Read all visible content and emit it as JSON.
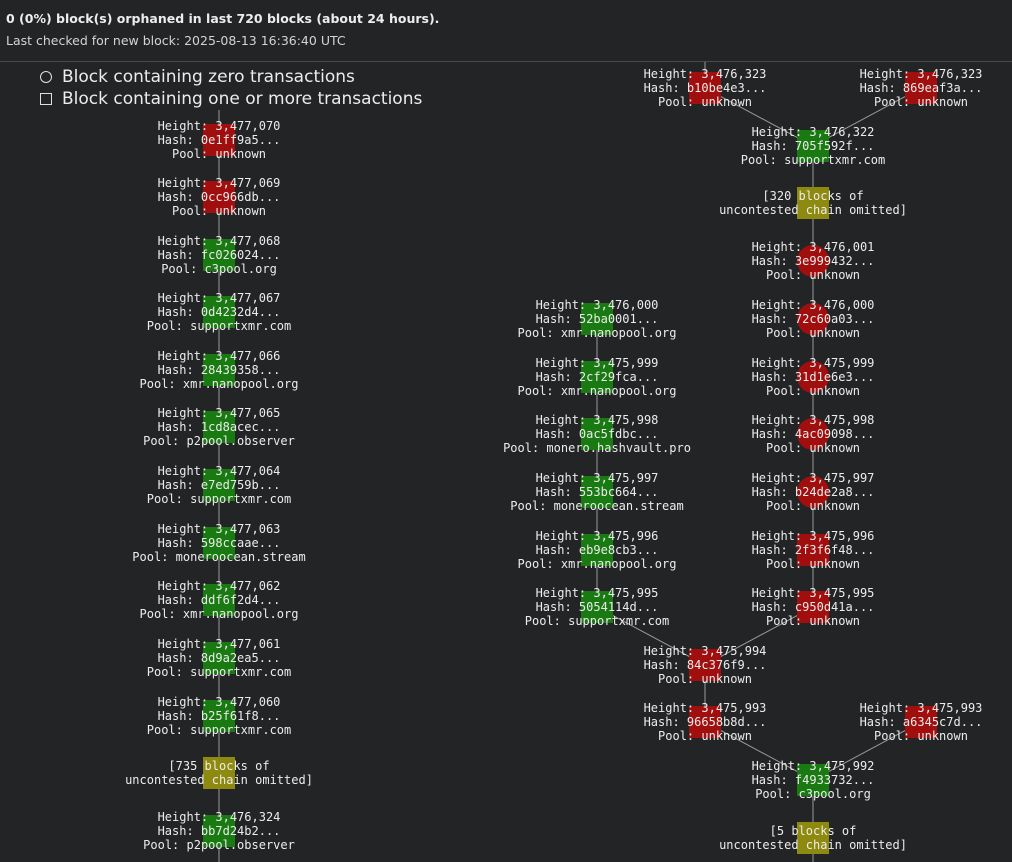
{
  "header": {
    "orphan_summary": "0 (0%) block(s) orphaned in last 720 blocks (about 24 hours).",
    "last_checked": "Last checked for new block: 2025-08-13 16:36:40 UTC"
  },
  "legend": {
    "zero_tx": "Block containing zero transactions",
    "with_tx": "Block containing one or more transactions"
  },
  "colors": {
    "background": "#232426",
    "orphan_red": "#a10e0e",
    "main_green": "#1a7a12",
    "omitted_olive": "#8e8a0f",
    "edge": "#9a9a9a"
  },
  "nodes": [
    {
      "id": "a3477070",
      "shape": "square",
      "color": "red",
      "lines": [
        "Height: 3,477,070",
        "Hash: 0e1ff9a5...",
        "Pool: unknown"
      ]
    },
    {
      "id": "a3477069",
      "shape": "square",
      "color": "red",
      "lines": [
        "Height: 3,477,069",
        "Hash: 0cc966db...",
        "Pool: unknown"
      ]
    },
    {
      "id": "a3477068",
      "shape": "square",
      "color": "green",
      "lines": [
        "Height: 3,477,068",
        "Hash: fc026024...",
        "Pool: c3pool.org"
      ]
    },
    {
      "id": "a3477067",
      "shape": "square",
      "color": "green",
      "lines": [
        "Height: 3,477,067",
        "Hash: 0d4232d4...",
        "Pool: supportxmr.com"
      ]
    },
    {
      "id": "a3477066",
      "shape": "square",
      "color": "green",
      "lines": [
        "Height: 3,477,066",
        "Hash: 28439358...",
        "Pool: xmr.nanopool.org"
      ]
    },
    {
      "id": "a3477065",
      "shape": "square",
      "color": "green",
      "lines": [
        "Height: 3,477,065",
        "Hash: 1cd8acec...",
        "Pool: p2pool.observer"
      ]
    },
    {
      "id": "a3477064",
      "shape": "square",
      "color": "green",
      "lines": [
        "Height: 3,477,064",
        "Hash: e7ed759b...",
        "Pool: supportxmr.com"
      ]
    },
    {
      "id": "a3477063",
      "shape": "square",
      "color": "green",
      "lines": [
        "Height: 3,477,063",
        "Hash: 598ccaae...",
        "Pool: moneroocean.stream"
      ]
    },
    {
      "id": "a3477062",
      "shape": "square",
      "color": "green",
      "lines": [
        "Height: 3,477,062",
        "Hash: ddf6f2d4...",
        "Pool: xmr.nanopool.org"
      ]
    },
    {
      "id": "a3477061",
      "shape": "square",
      "color": "green",
      "lines": [
        "Height: 3,477,061",
        "Hash: 8d9a2ea5...",
        "Pool: supportxmr.com"
      ]
    },
    {
      "id": "a3477060",
      "shape": "square",
      "color": "green",
      "lines": [
        "Height: 3,477,060",
        "Hash: b25f61f8...",
        "Pool: supportxmr.com"
      ]
    },
    {
      "id": "omit735",
      "shape": "square",
      "color": "olive",
      "lines": [
        "[735 blocks of",
        "uncontested chain omitted]"
      ]
    },
    {
      "id": "a3476324",
      "shape": "square",
      "color": "green",
      "lines": [
        "Height: 3,476,324",
        "Hash: bb7d24b2...",
        "Pool: p2pool.observer"
      ]
    },
    {
      "id": "b3476323a",
      "shape": "square",
      "color": "red",
      "lines": [
        "Height: 3,476,323",
        "Hash: b10be4e3...",
        "Pool: unknown"
      ]
    },
    {
      "id": "b3476323b",
      "shape": "square",
      "color": "red",
      "lines": [
        "Height: 3,476,323",
        "Hash: 869eaf3a...",
        "Pool: unknown"
      ]
    },
    {
      "id": "b3476322",
      "shape": "square",
      "color": "green",
      "lines": [
        "Height: 3,476,322",
        "Hash: 705f592f...",
        "Pool: supportxmr.com"
      ]
    },
    {
      "id": "omit320",
      "shape": "square",
      "color": "olive",
      "lines": [
        "[320 blocks of",
        "uncontested chain omitted]"
      ]
    },
    {
      "id": "r3476001",
      "shape": "circle",
      "color": "red",
      "lines": [
        "Height: 3,476,001",
        "Hash: 3e999432...",
        "Pool: unknown"
      ]
    },
    {
      "id": "r3476000",
      "shape": "circle",
      "color": "red",
      "lines": [
        "Height: 3,476,000",
        "Hash: 72c60a03...",
        "Pool: unknown"
      ]
    },
    {
      "id": "r3475999",
      "shape": "circle",
      "color": "red",
      "lines": [
        "Height: 3,475,999",
        "Hash: 31d1e6e3...",
        "Pool: unknown"
      ]
    },
    {
      "id": "r3475998",
      "shape": "circle",
      "color": "red",
      "lines": [
        "Height: 3,475,998",
        "Hash: 4ac09098...",
        "Pool: unknown"
      ]
    },
    {
      "id": "r3475997",
      "shape": "circle",
      "color": "red",
      "lines": [
        "Height: 3,475,997",
        "Hash: b24de2a8...",
        "Pool: unknown"
      ]
    },
    {
      "id": "r3475996",
      "shape": "square",
      "color": "red",
      "lines": [
        "Height: 3,475,996",
        "Hash: 2f3f6f48...",
        "Pool: unknown"
      ]
    },
    {
      "id": "r3475995",
      "shape": "square",
      "color": "red",
      "lines": [
        "Height: 3,475,995",
        "Hash: c950d41a...",
        "Pool: unknown"
      ]
    },
    {
      "id": "g3476000",
      "shape": "square",
      "color": "green",
      "lines": [
        "Height: 3,476,000",
        "Hash: 52ba0001...",
        "Pool: xmr.nanopool.org"
      ]
    },
    {
      "id": "g3475999",
      "shape": "square",
      "color": "green",
      "lines": [
        "Height: 3,475,999",
        "Hash: 2cf29fca...",
        "Pool: xmr.nanopool.org"
      ]
    },
    {
      "id": "g3475998",
      "shape": "square",
      "color": "green",
      "lines": [
        "Height: 3,475,998",
        "Hash: 0ac5fdbc...",
        "Pool: monero.hashvault.pro"
      ]
    },
    {
      "id": "g3475997",
      "shape": "square",
      "color": "green",
      "lines": [
        "Height: 3,475,997",
        "Hash: 553bc664...",
        "Pool: moneroocean.stream"
      ]
    },
    {
      "id": "g3475996",
      "shape": "square",
      "color": "green",
      "lines": [
        "Height: 3,475,996",
        "Hash: eb9e8cb3...",
        "Pool: xmr.nanopool.org"
      ]
    },
    {
      "id": "g3475995",
      "shape": "square",
      "color": "green",
      "lines": [
        "Height: 3,475,995",
        "Hash: 5054114d...",
        "Pool: supportxmr.com"
      ]
    },
    {
      "id": "m3475994",
      "shape": "square",
      "color": "red",
      "lines": [
        "Height: 3,475,994",
        "Hash: 84c376f9...",
        "Pool: unknown"
      ]
    },
    {
      "id": "m3475993a",
      "shape": "square",
      "color": "red",
      "lines": [
        "Height: 3,475,993",
        "Hash: 96658b8d...",
        "Pool: unknown"
      ]
    },
    {
      "id": "m3475993b",
      "shape": "square",
      "color": "red",
      "lines": [
        "Height: 3,475,993",
        "Hash: a6345c7d...",
        "Pool: unknown"
      ]
    },
    {
      "id": "m3475992",
      "shape": "square",
      "color": "green",
      "lines": [
        "Height: 3,475,992",
        "Hash: f4933732...",
        "Pool: c3pool.org"
      ]
    },
    {
      "id": "omit5",
      "shape": "square",
      "color": "olive",
      "lines": [
        "[5 blocks of",
        "uncontested chain omitted]"
      ]
    }
  ],
  "edges": [
    [
      "a3477070",
      "a3477069"
    ],
    [
      "a3477069",
      "a3477068"
    ],
    [
      "a3477068",
      "a3477067"
    ],
    [
      "a3477067",
      "a3477066"
    ],
    [
      "a3477066",
      "a3477065"
    ],
    [
      "a3477065",
      "a3477064"
    ],
    [
      "a3477064",
      "a3477063"
    ],
    [
      "a3477063",
      "a3477062"
    ],
    [
      "a3477062",
      "a3477061"
    ],
    [
      "a3477061",
      "a3477060"
    ],
    [
      "a3477060",
      "omit735"
    ],
    [
      "omit735",
      "a3476324"
    ],
    [
      "b3476323a",
      "b3476322"
    ],
    [
      "b3476323b",
      "b3476322"
    ],
    [
      "b3476322",
      "omit320"
    ],
    [
      "omit320",
      "r3476001"
    ],
    [
      "r3476001",
      "r3476000"
    ],
    [
      "r3476000",
      "r3475999"
    ],
    [
      "r3475999",
      "r3475998"
    ],
    [
      "r3475998",
      "r3475997"
    ],
    [
      "r3475997",
      "r3475996"
    ],
    [
      "r3475996",
      "r3475995"
    ],
    [
      "r3475995",
      "m3475994"
    ],
    [
      "g3476000",
      "g3475999"
    ],
    [
      "g3475999",
      "g3475998"
    ],
    [
      "g3475998",
      "g3475997"
    ],
    [
      "g3475997",
      "g3475996"
    ],
    [
      "g3475996",
      "g3475995"
    ],
    [
      "g3475995",
      "m3475994"
    ],
    [
      "m3475994",
      "m3475993a"
    ],
    [
      "m3475993a",
      "m3475992"
    ],
    [
      "m3475993b",
      "m3475992"
    ],
    [
      "m3475992",
      "omit5"
    ]
  ]
}
